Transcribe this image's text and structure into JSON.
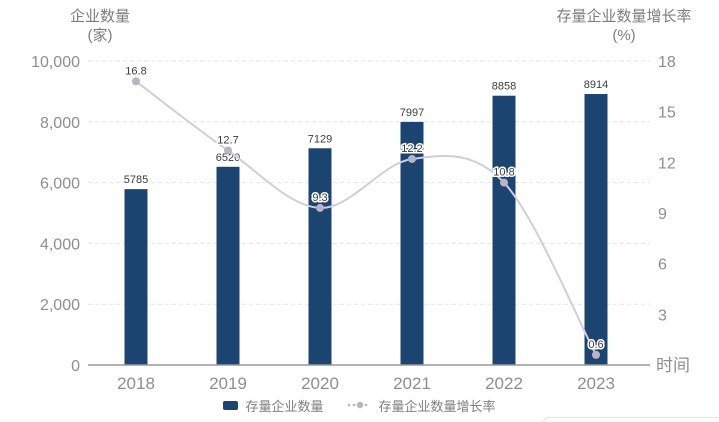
{
  "titles": {
    "left": {
      "line1": "企业数量",
      "line2": "(家)"
    },
    "right": {
      "line1": "存量企业数量增长率",
      "line2": "(%)"
    }
  },
  "legend": {
    "items": [
      {
        "label": "存量企业数量",
        "marker": "bar-swatch"
      },
      {
        "label": "存量企业数量增长率",
        "marker": "dotted-line-marker"
      }
    ]
  },
  "chart_data": {
    "type": "combo-bar-line",
    "categories": [
      "2018",
      "2019",
      "2020",
      "2021",
      "2022",
      "2023"
    ],
    "series": [
      {
        "name": "存量企业数量",
        "type": "bar",
        "axis": "left",
        "values": [
          5785,
          6520,
          7129,
          7997,
          8858,
          8914
        ],
        "data_labels": [
          "5785",
          "6520",
          "7129",
          "7997",
          "8858",
          "8914"
        ]
      },
      {
        "name": "存量企业数量增长率",
        "type": "line",
        "axis": "right",
        "values": [
          16.8,
          12.7,
          9.3,
          12.2,
          10.8,
          0.6
        ],
        "data_labels": [
          "16.8",
          "12.7",
          "9.3",
          "12.2",
          "10.8",
          "0.6"
        ]
      }
    ],
    "title": "",
    "xlabel": "时间",
    "left_axis": {
      "label": "企业数量(家)",
      "range": [
        0,
        10000
      ],
      "tick_values": [
        0,
        2000,
        4000,
        6000,
        8000,
        10000
      ],
      "tick_labels": [
        "0",
        "2,000",
        "4,000",
        "6,000",
        "8,000",
        "10,000"
      ]
    },
    "right_axis": {
      "label": "存量企业数量增长率(%)",
      "range": [
        0,
        18
      ],
      "tick_values": [
        3,
        6,
        9,
        12,
        15,
        18
      ],
      "tick_labels": [
        "3",
        "6",
        "9",
        "12",
        "15",
        "18"
      ]
    },
    "grid": "horizontal-dashed",
    "legend_position": "bottom"
  },
  "colors": {
    "bar": "#1c4470",
    "line": "#cfcede",
    "marker": "#b5b5c5",
    "grid": "#e6e6ea",
    "axis_line": "#9a9a9a",
    "tick_text": "#8e8e8e",
    "title_text": "#7d7d7d",
    "data_label": "#3d3d3d",
    "legend_text": "#7f7f7f",
    "card_border": "#e4e4e4"
  }
}
